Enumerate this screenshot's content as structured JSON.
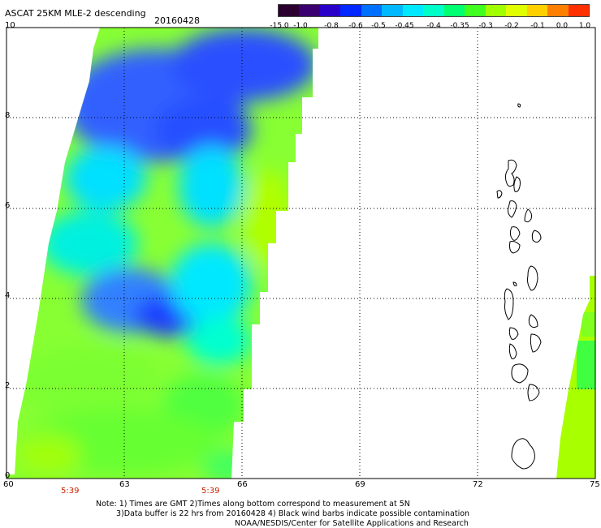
{
  "title": "ASCAT 25KM MLE-2 descending",
  "date": "20160428",
  "colorbar": {
    "labels": [
      "-15.0",
      "-1.0",
      "-0.8",
      "-0.6",
      "-0.5",
      "-0.45",
      "-0.4",
      "-0.35",
      "-0.3",
      "-0.2",
      "-0.1",
      "0.0",
      "1.0"
    ],
    "colors": [
      "#2b002f",
      "#3a0070",
      "#2a00c8",
      "#0028ff",
      "#0070ff",
      "#00b8ff",
      "#00e8ff",
      "#00ffc8",
      "#00ff70",
      "#40ff20",
      "#a0ff00",
      "#e0ff00",
      "#ffd000",
      "#ff8000",
      "#ff3000"
    ]
  },
  "axes": {
    "x_ticks": [
      "60",
      "63",
      "66",
      "69",
      "72",
      "75"
    ],
    "y_ticks": [
      "0",
      "2",
      "4",
      "6",
      "8",
      "10"
    ]
  },
  "times": [
    "5:39",
    "5:39"
  ],
  "notes": [
    "Note: 1) Times are GMT 2)Times along bottom correspond to measurement at 5N",
    "3)Data buffer is 22 hrs from 20160428 4) Black wind barbs indicate possible contamination",
    "NOAA/NESDIS/Center for Satellite Applications and Research"
  ]
}
